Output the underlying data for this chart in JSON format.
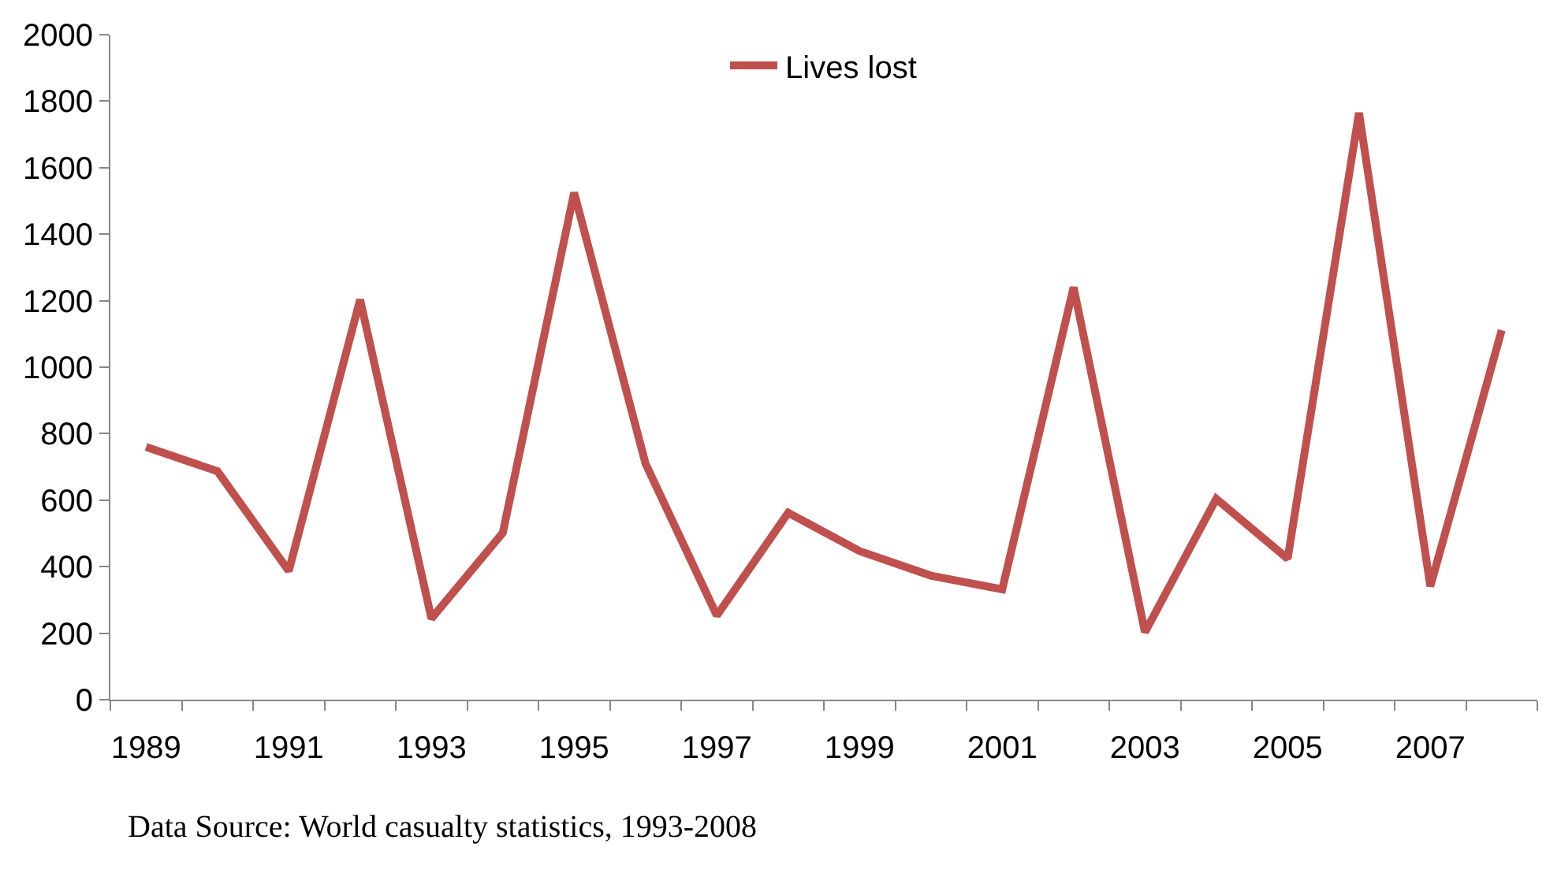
{
  "chart_data": {
    "type": "line",
    "categories": [
      "1989",
      null,
      "1991",
      null,
      "1993",
      null,
      "1995",
      null,
      "1997",
      null,
      "1999",
      null,
      "2001",
      null,
      "2003",
      null,
      "2005",
      null,
      "2007",
      null
    ],
    "series": [
      {
        "name": "Lives lost",
        "color": "#c0504d",
        "values": [
          760,
          687,
          387,
          1203,
          244,
          502,
          1525,
          710,
          253,
          562,
          447,
          373,
          332,
          1240,
          203,
          604,
          424,
          1765,
          341,
          1111
        ]
      }
    ],
    "ylim": [
      0,
      2000
    ],
    "yticks": [
      0,
      200,
      400,
      600,
      800,
      1000,
      1200,
      1400,
      1600,
      1800,
      2000
    ],
    "legend": "top",
    "marker": "none",
    "line_style": "solid",
    "annotations": [
      "Data Source: World casualty statistics, 1993-2008"
    ]
  }
}
